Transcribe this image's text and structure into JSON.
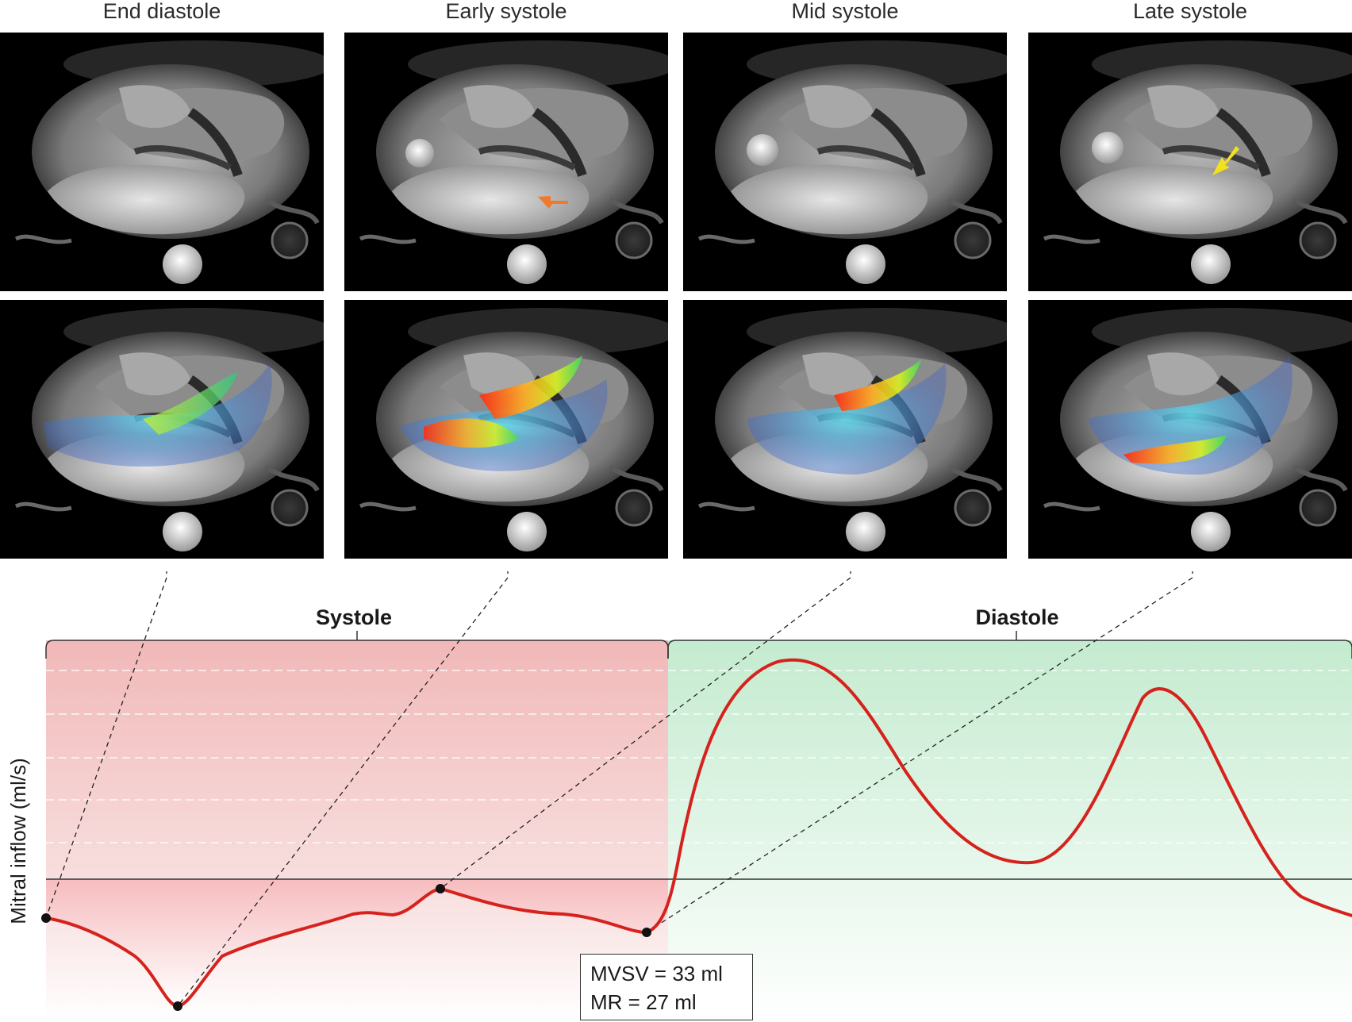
{
  "frames": [
    {
      "id": "end-diastole",
      "label": "End diastole"
    },
    {
      "id": "early-systole",
      "label": "Early systole"
    },
    {
      "id": "mid-systole",
      "label": "Mid systole"
    },
    {
      "id": "late-systole",
      "label": "Late systole"
    }
  ],
  "phases": {
    "systole": "Systole",
    "diastole": "Diastole"
  },
  "chart": {
    "ylabel": "Mitral inflow (ml/s)",
    "annotation": [
      "MVSV = 33 ml",
      "MR = 27 ml"
    ]
  },
  "arrows": {
    "early_systole": "orange-arrow",
    "late_systole": "yellow-arrow"
  },
  "colors": {
    "curve": "#d6221c",
    "systole_fill": "#f5b9b9",
    "diastole_fill": "#c4ebcf",
    "orange_arrow": "#f07a2a",
    "yellow_arrow": "#f2e21b"
  }
}
